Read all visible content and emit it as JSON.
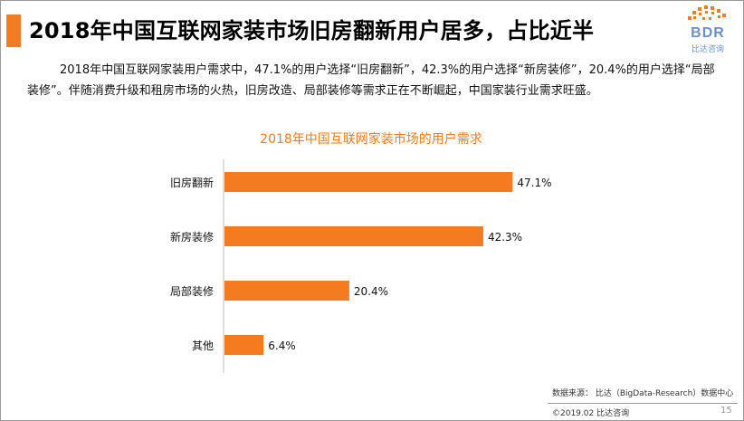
{
  "header": {
    "title": "2018年中国互联网家装市场旧房翻新用户居多，占比近半",
    "logo_text": "BDR",
    "logo_sub": "比达咨询"
  },
  "description": "2018年中国互联网家装用户需求中，47.1%的用户选择“旧房翻新”，42.3%的用户选择“新房装修”，20.4%的用户选择“局部装修”。伴随消费升级和租房市场的火热，旧房改造、局部装修等需求正在不断崛起，中国家装行业需求旺盛。",
  "chart_data": {
    "type": "bar",
    "orientation": "horizontal",
    "title": "2018年中国互联网家装市场的用户需求",
    "categories": [
      "旧房翻新",
      "新房装修",
      "局部装修",
      "其他"
    ],
    "values": [
      47.1,
      42.3,
      20.4,
      6.4
    ],
    "value_labels": [
      "47.1%",
      "42.3%",
      "20.4%",
      "6.4%"
    ],
    "xlim": [
      0,
      50
    ],
    "grid": false,
    "bar_color": "#f47b20",
    "title_color": "#f47b20"
  },
  "footer": {
    "source": "数据来源：  比达（BigData-Research）数据中心",
    "copyright": "©2019.02  比达咨询",
    "page_number": "15"
  }
}
